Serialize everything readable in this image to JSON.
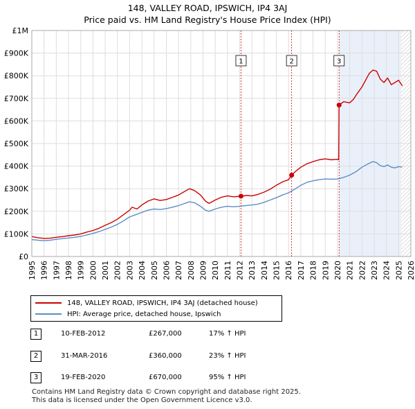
{
  "title_line1": "148, VALLEY ROAD, IPSWICH, IP4 3AJ",
  "title_line2": "Price paid vs. HM Land Registry's House Price Index (HPI)",
  "colors": {
    "property": "#cc0000",
    "hpi": "#5b8ec5",
    "grid": "#dddddd",
    "shade": "#eaf0fa",
    "marker_line": "#cc0000",
    "future_hatch": "#bbbbbb"
  },
  "chart_data": {
    "type": "line",
    "xlim": [
      1995,
      2026
    ],
    "ylim": [
      0,
      1000000
    ],
    "y_ticks": [
      {
        "value": 0,
        "label": "£0"
      },
      {
        "value": 100000,
        "label": "£100K"
      },
      {
        "value": 200000,
        "label": "£200K"
      },
      {
        "value": 300000,
        "label": "£300K"
      },
      {
        "value": 400000,
        "label": "£400K"
      },
      {
        "value": 500000,
        "label": "£500K"
      },
      {
        "value": 600000,
        "label": "£600K"
      },
      {
        "value": 700000,
        "label": "£700K"
      },
      {
        "value": 800000,
        "label": "£800K"
      },
      {
        "value": 900000,
        "label": "£900K"
      },
      {
        "value": 1000000,
        "label": "£1M"
      }
    ],
    "x_ticks": [
      1995,
      1996,
      1997,
      1998,
      1999,
      2000,
      2001,
      2002,
      2003,
      2004,
      2005,
      2006,
      2007,
      2008,
      2009,
      2010,
      2011,
      2012,
      2013,
      2014,
      2015,
      2016,
      2017,
      2018,
      2019,
      2020,
      2021,
      2022,
      2023,
      2024,
      2025,
      2026
    ],
    "shaded_from": 2020.13,
    "future_from": 2025.2,
    "series": [
      {
        "name": "148, VALLEY ROAD, IPSWICH, IP4 3AJ (detached house)",
        "color": "#cc0000",
        "points": [
          [
            1995.0,
            88000
          ],
          [
            1995.5,
            83000
          ],
          [
            1996.0,
            80000
          ],
          [
            1996.5,
            81000
          ],
          [
            1997.0,
            85000
          ],
          [
            1997.5,
            88000
          ],
          [
            1998.0,
            92000
          ],
          [
            1998.5,
            95000
          ],
          [
            1999.0,
            100000
          ],
          [
            1999.5,
            108000
          ],
          [
            2000.0,
            115000
          ],
          [
            2000.5,
            125000
          ],
          [
            2001.0,
            138000
          ],
          [
            2001.5,
            150000
          ],
          [
            2002.0,
            165000
          ],
          [
            2002.5,
            185000
          ],
          [
            2003.0,
            205000
          ],
          [
            2003.2,
            218000
          ],
          [
            2003.6,
            210000
          ],
          [
            2004.0,
            228000
          ],
          [
            2004.5,
            245000
          ],
          [
            2005.0,
            255000
          ],
          [
            2005.5,
            248000
          ],
          [
            2006.0,
            252000
          ],
          [
            2006.5,
            262000
          ],
          [
            2007.0,
            272000
          ],
          [
            2007.5,
            288000
          ],
          [
            2007.9,
            300000
          ],
          [
            2008.3,
            292000
          ],
          [
            2008.8,
            272000
          ],
          [
            2009.2,
            245000
          ],
          [
            2009.5,
            235000
          ],
          [
            2010.0,
            250000
          ],
          [
            2010.5,
            262000
          ],
          [
            2011.0,
            268000
          ],
          [
            2011.5,
            264000
          ],
          [
            2012.11,
            267000
          ],
          [
            2012.6,
            270000
          ],
          [
            2013.0,
            268000
          ],
          [
            2013.5,
            275000
          ],
          [
            2014.0,
            285000
          ],
          [
            2014.5,
            298000
          ],
          [
            2015.0,
            315000
          ],
          [
            2015.5,
            330000
          ],
          [
            2016.0,
            340000
          ],
          [
            2016.25,
            360000
          ],
          [
            2016.6,
            378000
          ],
          [
            2017.0,
            395000
          ],
          [
            2017.5,
            410000
          ],
          [
            2018.0,
            420000
          ],
          [
            2018.5,
            428000
          ],
          [
            2019.0,
            432000
          ],
          [
            2019.5,
            428000
          ],
          [
            2020.0,
            430000
          ],
          [
            2020.1,
            428000
          ],
          [
            2020.13,
            670000
          ],
          [
            2020.5,
            685000
          ],
          [
            2021.0,
            680000
          ],
          [
            2021.3,
            695000
          ],
          [
            2021.6,
            720000
          ],
          [
            2022.0,
            750000
          ],
          [
            2022.3,
            780000
          ],
          [
            2022.6,
            810000
          ],
          [
            2022.9,
            825000
          ],
          [
            2023.2,
            820000
          ],
          [
            2023.5,
            785000
          ],
          [
            2023.8,
            770000
          ],
          [
            2024.1,
            790000
          ],
          [
            2024.4,
            760000
          ],
          [
            2024.7,
            770000
          ],
          [
            2025.0,
            780000
          ],
          [
            2025.3,
            755000
          ]
        ]
      },
      {
        "name": "HPI: Average price, detached house, Ipswich",
        "color": "#5b8ec5",
        "points": [
          [
            1995.0,
            75000
          ],
          [
            1995.5,
            72000
          ],
          [
            1996.0,
            70000
          ],
          [
            1996.5,
            72000
          ],
          [
            1997.0,
            76000
          ],
          [
            1997.5,
            79000
          ],
          [
            1998.0,
            82000
          ],
          [
            1998.5,
            85000
          ],
          [
            1999.0,
            89000
          ],
          [
            1999.5,
            95000
          ],
          [
            2000.0,
            102000
          ],
          [
            2000.5,
            110000
          ],
          [
            2001.0,
            120000
          ],
          [
            2001.5,
            130000
          ],
          [
            2002.0,
            142000
          ],
          [
            2002.5,
            158000
          ],
          [
            2003.0,
            175000
          ],
          [
            2003.5,
            185000
          ],
          [
            2004.0,
            195000
          ],
          [
            2004.5,
            205000
          ],
          [
            2005.0,
            210000
          ],
          [
            2005.5,
            208000
          ],
          [
            2006.0,
            212000
          ],
          [
            2006.5,
            218000
          ],
          [
            2007.0,
            225000
          ],
          [
            2007.5,
            235000
          ],
          [
            2007.9,
            242000
          ],
          [
            2008.3,
            238000
          ],
          [
            2008.8,
            222000
          ],
          [
            2009.2,
            205000
          ],
          [
            2009.5,
            200000
          ],
          [
            2010.0,
            210000
          ],
          [
            2010.5,
            218000
          ],
          [
            2011.0,
            222000
          ],
          [
            2011.5,
            220000
          ],
          [
            2012.0,
            222000
          ],
          [
            2012.5,
            225000
          ],
          [
            2013.0,
            228000
          ],
          [
            2013.5,
            232000
          ],
          [
            2014.0,
            240000
          ],
          [
            2014.5,
            250000
          ],
          [
            2015.0,
            260000
          ],
          [
            2015.5,
            272000
          ],
          [
            2016.0,
            282000
          ],
          [
            2016.5,
            298000
          ],
          [
            2017.0,
            315000
          ],
          [
            2017.5,
            328000
          ],
          [
            2018.0,
            335000
          ],
          [
            2018.5,
            340000
          ],
          [
            2019.0,
            343000
          ],
          [
            2019.5,
            342000
          ],
          [
            2020.0,
            343000
          ],
          [
            2020.5,
            350000
          ],
          [
            2021.0,
            360000
          ],
          [
            2021.5,
            375000
          ],
          [
            2022.0,
            395000
          ],
          [
            2022.5,
            410000
          ],
          [
            2022.9,
            420000
          ],
          [
            2023.2,
            415000
          ],
          [
            2023.5,
            402000
          ],
          [
            2023.8,
            398000
          ],
          [
            2024.1,
            405000
          ],
          [
            2024.4,
            395000
          ],
          [
            2024.7,
            392000
          ],
          [
            2025.0,
            398000
          ],
          [
            2025.3,
            395000
          ]
        ]
      }
    ],
    "sales": [
      {
        "num": "1",
        "x": 2012.11,
        "y": 267000
      },
      {
        "num": "2",
        "x": 2016.25,
        "y": 360000
      },
      {
        "num": "3",
        "x": 2020.13,
        "y": 670000
      }
    ]
  },
  "legend": {
    "property_label": "148, VALLEY ROAD, IPSWICH, IP4 3AJ (detached house)",
    "hpi_label": "HPI: Average price, detached house, Ipswich"
  },
  "transactions": [
    {
      "num": "1",
      "date": "10-FEB-2012",
      "price": "£267,000",
      "hpi": "17% ↑ HPI"
    },
    {
      "num": "2",
      "date": "31-MAR-2016",
      "price": "£360,000",
      "hpi": "23% ↑ HPI"
    },
    {
      "num": "3",
      "date": "19-FEB-2020",
      "price": "£670,000",
      "hpi": "95% ↑ HPI"
    }
  ],
  "footer_line1": "Contains HM Land Registry data © Crown copyright and database right 2025.",
  "footer_line2": "This data is licensed under the Open Government Licence v3.0."
}
